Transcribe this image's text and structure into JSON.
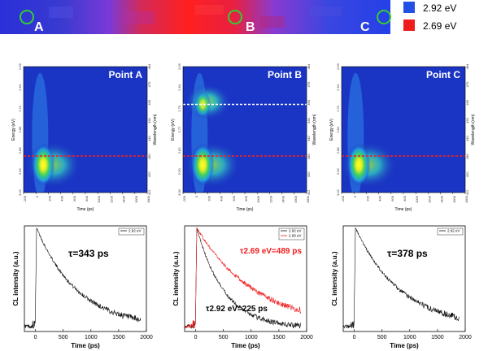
{
  "strip": {
    "points": [
      "A",
      "B",
      "C"
    ]
  },
  "legend": {
    "blue_label": "2.92 eV",
    "red_label": "2.69 eV",
    "blue_color": "#2250e6",
    "red_color": "#ee1d1d"
  },
  "colors": {
    "marker": "#33cc33",
    "map_bg": "#1a35c4",
    "trace_black": "#111111",
    "trace_red": "#ee1d1d",
    "line_red": "#ee2222",
    "line_white": "#ffffff"
  },
  "maps": [
    {
      "title": "Point A",
      "hot_x": 0.16,
      "hot_y": 0.78,
      "upper": false
    },
    {
      "title": "Point B",
      "hot_x": 0.16,
      "hot_y": 0.78,
      "upper": true
    },
    {
      "title": "Point C",
      "hot_x": 0.14,
      "hot_y": 0.78,
      "upper": false
    }
  ],
  "map_axes": {
    "xlabel": "Time (ps)",
    "ylabel": "Energy (eV)",
    "y2label": "Wavelength (nm)",
    "xticks": [
      "-200",
      "0",
      "200",
      "400",
      "600",
      "800",
      "1000",
      "1200",
      "1400",
      "1600",
      "1800"
    ],
    "energy_ticks_a": [
      "2.56",
      "2.64",
      "2.72",
      "2.80",
      "2.88",
      "2.96",
      "3.02"
    ],
    "energy_ticks_b": [
      "2.56",
      "2.64",
      "2.70",
      "2.77",
      "2.82",
      "2.90",
      "3.00"
    ],
    "energy_ticks_c": [
      "2.56",
      "2.64",
      "2.72",
      "2.81",
      "2.88",
      "2.96",
      "3.02"
    ],
    "wavelength_ticks": [
      "484",
      "470",
      "460",
      "450",
      "440",
      "430",
      "420",
      "412"
    ],
    "red_line_energy_fraction": 0.71,
    "white_line_energy_fraction": 0.3
  },
  "chart_data": [
    {
      "type": "line",
      "panel": "A",
      "xlabel": "Time (ps)",
      "ylabel": "CL intensity (a.u.)",
      "xlim": [
        -200,
        2000
      ],
      "xticks": [
        0,
        500,
        1000,
        1500,
        2000
      ],
      "series": [
        {
          "name": "2.92 eV",
          "tau_ps": 343,
          "rise_ps": 0,
          "peak": 1.0,
          "color": "#111111"
        }
      ],
      "annotations": [
        "τ=343 ps"
      ]
    },
    {
      "type": "line",
      "panel": "B",
      "xlabel": "Time (ps)",
      "ylabel": "CL intensity (a.u.)",
      "xlim": [
        -200,
        2000
      ],
      "xticks": [
        0,
        500,
        1000,
        1500,
        2000
      ],
      "series": [
        {
          "name": "2.92 eV",
          "tau_ps": 225,
          "rise_ps": 0,
          "peak": 1.0,
          "color": "#111111"
        },
        {
          "name": "2.69 eV",
          "tau_ps": 489,
          "rise_ps": 0,
          "peak": 1.0,
          "color": "#ee1d1d"
        }
      ],
      "annotations": [
        "τ2.69 eV=489 ps",
        "τ2.92 eV=225 ps"
      ]
    },
    {
      "type": "line",
      "panel": "C",
      "xlabel": "Time (ps)",
      "ylabel": "CL intensity (a.u.)",
      "xlim": [
        -200,
        2000
      ],
      "xticks": [
        0,
        500,
        1000,
        1500,
        2000
      ],
      "series": [
        {
          "name": "2.92 eV",
          "tau_ps": 378,
          "rise_ps": 0,
          "peak": 1.0,
          "color": "#111111"
        }
      ],
      "annotations": [
        "τ=378 ps"
      ]
    }
  ]
}
